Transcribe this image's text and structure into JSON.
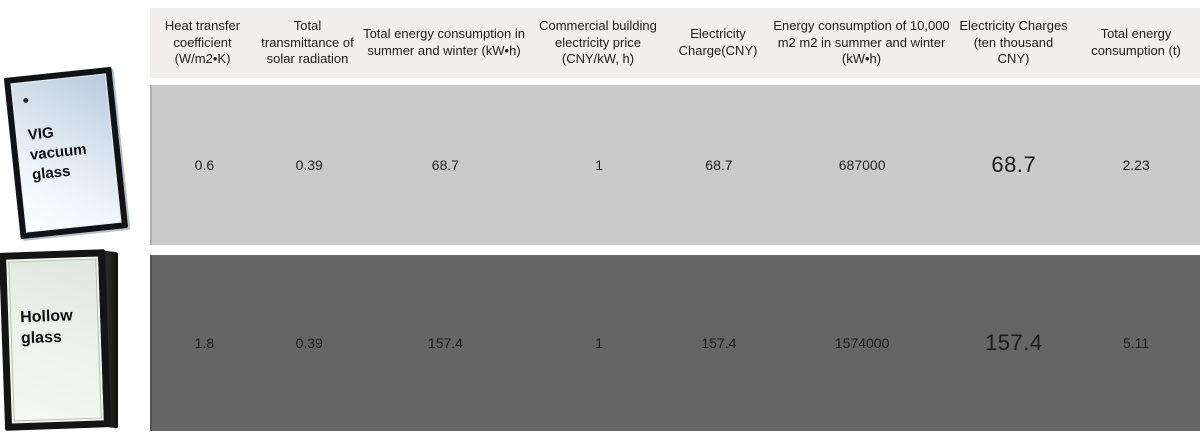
{
  "figures": {
    "vig": {
      "label": "VIG\nvacuum\nglass"
    },
    "hollow": {
      "label": "Hollow\nglass"
    }
  },
  "table": {
    "headers": [
      "Heat transfer coefficient (W/m2•K)",
      "Total transmittance of solar radiation",
      "Total energy consumption in summer and winter (kW•h)",
      "Commercial building electricity price (CNY/kW, h)",
      "Electricity Charge(CNY)",
      "Energy consumption of 10,000 m2 m2 in summer and winter (kW•h)",
      "Electricity Charges (ten thousand CNY)",
      "Total energy consumption (t)"
    ],
    "rows": [
      {
        "label": "VIG vacuum glass",
        "values": [
          "0.6",
          "0.39",
          "68.7",
          "1",
          "68.7",
          "687000",
          "68.7",
          "2.23"
        ]
      },
      {
        "label": "Hollow glass",
        "values": [
          "1.8",
          "0.39",
          "157.4",
          "1",
          "157.4",
          "1574000",
          "157.4",
          "5.11"
        ]
      }
    ]
  },
  "colors": {
    "header_bg": "#f0efee",
    "row1_bg": "#cacaca",
    "row2_bg": "#656565",
    "text": "#1c1c1c"
  }
}
